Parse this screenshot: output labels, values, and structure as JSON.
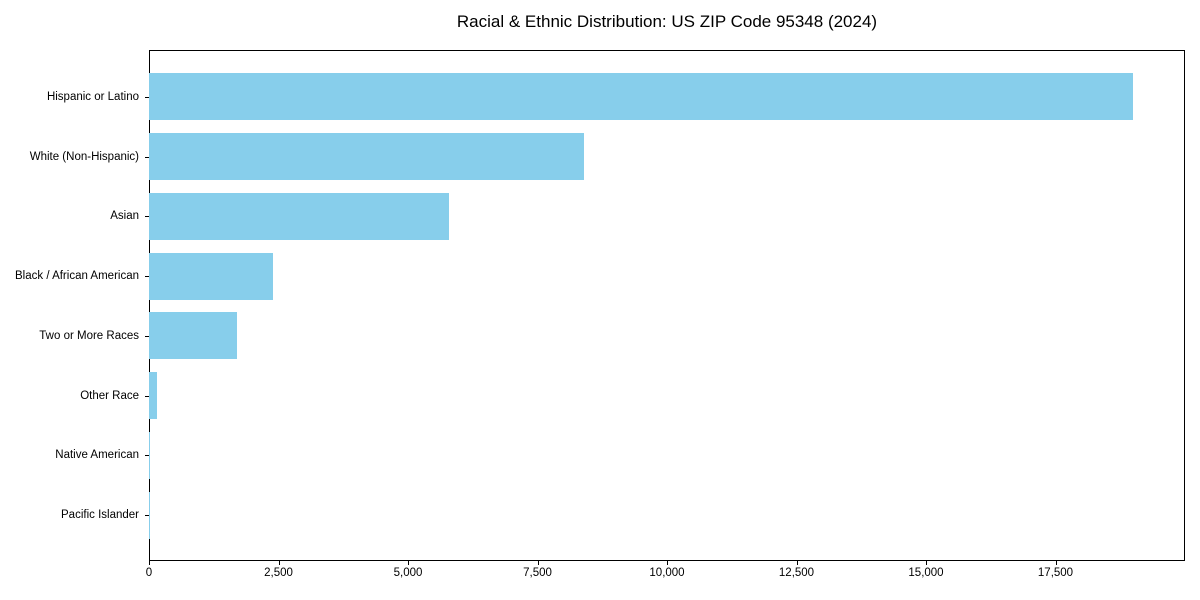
{
  "title": "Racial & Ethnic Distribution: US ZIP Code 95348 (2024)",
  "chart_data": {
    "type": "bar",
    "orientation": "horizontal",
    "title": "Racial & Ethnic Distribution: US ZIP Code 95348 (2024)",
    "xlabel": "",
    "ylabel": "",
    "categories": [
      "Hispanic or Latino",
      "White (Non-Hispanic)",
      "Asian",
      "Black / African American",
      "Two or More Races",
      "Other Race",
      "Native American",
      "Pacific Islander"
    ],
    "values": [
      19000,
      8400,
      5800,
      2400,
      1700,
      150,
      25,
      5
    ],
    "xlim": [
      0,
      20000
    ],
    "x_ticks": [
      0,
      2500,
      5000,
      7500,
      10000,
      12500,
      15000,
      17500
    ],
    "x_tick_labels": [
      "0",
      "2,500",
      "5,000",
      "7,500",
      "10,000",
      "12,500",
      "15,000",
      "17,500"
    ],
    "bar_color": "#87CEEB",
    "text_color": "#000000",
    "background_color": "#ffffff",
    "grid": false,
    "legend": false
  }
}
